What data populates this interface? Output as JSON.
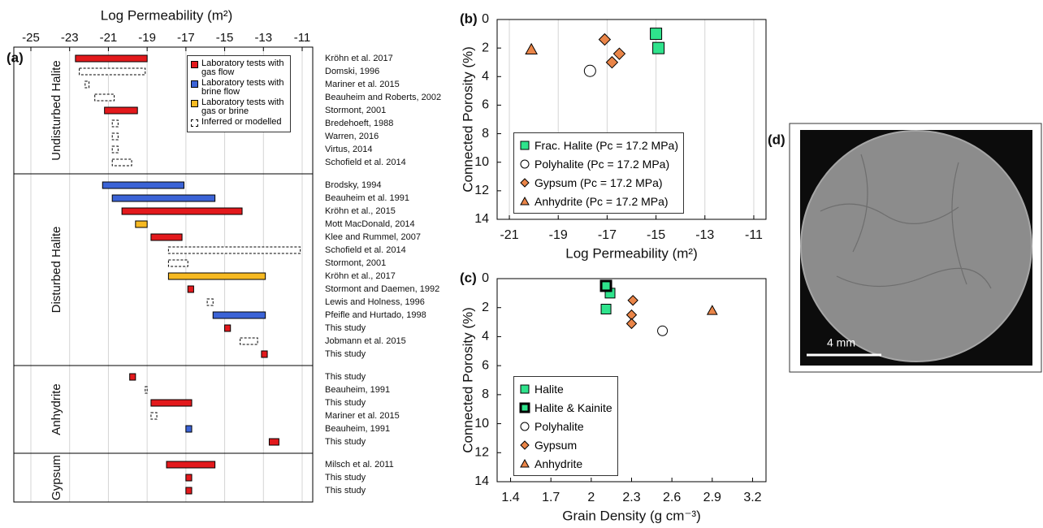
{
  "chart_data": [
    {
      "type": "range_bar",
      "panel_label": "(a)",
      "xlabel": "Log Permeability (m²)",
      "xlim": [
        -25,
        -11
      ],
      "xticks": [
        -25,
        -23,
        -21,
        -19,
        -17,
        -15,
        -13,
        -11
      ],
      "grid": "x",
      "legend": "top-right",
      "series": [
        {
          "name": "Laboratory tests with gas flow",
          "color": "#e3191c",
          "style": "solid"
        },
        {
          "name": "Laboratory tests with brine flow",
          "color": "#3b63d6",
          "style": "solid"
        },
        {
          "name": "Laboratory tests with gas or brine",
          "color": "#f6b921",
          "style": "solid"
        },
        {
          "name": "Inferred or modelled",
          "color": "#ffffff",
          "style": "dashed"
        }
      ],
      "groups": [
        {
          "name": "Undisturbed Halite",
          "bars": [
            {
              "label": "Kröhn et al. 2017",
              "range": [
                -22.7,
                -19.0
              ],
              "series": 0
            },
            {
              "label": "Domski, 1996",
              "range": [
                -22.5,
                -19.1
              ],
              "series": 3
            },
            {
              "label": "Mariner et al. 2015",
              "range": [
                -22.2,
                -22.0
              ],
              "series": 3
            },
            {
              "label": "Beauheim and Roberts, 2002",
              "range": [
                -21.7,
                -20.7
              ],
              "series": 3
            },
            {
              "label": "Stormont, 2001",
              "range": [
                -21.2,
                -19.5
              ],
              "series": 0
            },
            {
              "label": "Bredehoeft, 1988",
              "range": [
                -20.8,
                -20.5
              ],
              "series": 3
            },
            {
              "label": "Warren, 2016",
              "range": [
                -20.8,
                -20.5
              ],
              "series": 3
            },
            {
              "label": "Virtus, 2014",
              "range": [
                -20.8,
                -20.5
              ],
              "series": 3
            },
            {
              "label": "Schofield et al. 2014",
              "range": [
                -20.8,
                -19.8
              ],
              "series": 3
            }
          ]
        },
        {
          "name": "Disturbed Halite",
          "bars": [
            {
              "label": "Brodsky, 1994",
              "range": [
                -21.3,
                -17.1
              ],
              "series": 1
            },
            {
              "label": "Beauheim et al. 1991",
              "range": [
                -20.8,
                -15.5
              ],
              "series": 1
            },
            {
              "label": "Kröhn et al., 2015",
              "range": [
                -20.3,
                -14.1
              ],
              "series": 0
            },
            {
              "label": "Mott MacDonald, 2014",
              "range": [
                -19.6,
                -19.0
              ],
              "series": 2
            },
            {
              "label": "Klee and Rummel, 2007",
              "range": [
                -18.8,
                -17.2
              ],
              "series": 0
            },
            {
              "label": "Schofield et al. 2014",
              "range": [
                -17.9,
                -11.1
              ],
              "series": 3
            },
            {
              "label": "Stormont, 2001",
              "range": [
                -17.9,
                -16.9
              ],
              "series": 3
            },
            {
              "label": "Kröhn et al., 2017",
              "range": [
                -17.9,
                -12.9
              ],
              "series": 2
            },
            {
              "label": "Stormont and Daemen, 1992",
              "range": [
                -16.9,
                -16.6
              ],
              "series": 0
            },
            {
              "label": "Lewis and Holness, 1996",
              "range": [
                -15.9,
                -15.6
              ],
              "series": 3
            },
            {
              "label": "Pfeifle and Hurtado, 1998",
              "range": [
                -15.6,
                -12.9
              ],
              "series": 1
            },
            {
              "label": "This study",
              "range": [
                -15.0,
                -14.7
              ],
              "series": 0
            },
            {
              "label": "Jobmann et al. 2015",
              "range": [
                -14.2,
                -13.3
              ],
              "series": 3
            },
            {
              "label": "This study",
              "range": [
                -13.1,
                -12.8
              ],
              "series": 0
            }
          ]
        },
        {
          "name": "Anhydrite",
          "bars": [
            {
              "label": "This study",
              "range": [
                -19.9,
                -19.6
              ],
              "series": 0
            },
            {
              "label": "Beauheim, 1991",
              "range": [
                -19.1,
                -19.0
              ],
              "series": 3
            },
            {
              "label": "This study",
              "range": [
                -18.8,
                -16.7
              ],
              "series": 0
            },
            {
              "label": "Mariner et al. 2015",
              "range": [
                -18.8,
                -18.5
              ],
              "series": 3
            },
            {
              "label": "Beauheim, 1991",
              "range": [
                -17.0,
                -16.7
              ],
              "series": 1
            },
            {
              "label": "This study",
              "range": [
                -12.7,
                -12.2
              ],
              "series": 0
            }
          ]
        },
        {
          "name": "Gypsum",
          "bars": [
            {
              "label": "Milsch et al. 2011",
              "range": [
                -18.0,
                -15.5
              ],
              "series": 0
            },
            {
              "label": "This study",
              "range": [
                -17.0,
                -16.7
              ],
              "series": 0
            },
            {
              "label": "This study",
              "range": [
                -17.0,
                -16.7
              ],
              "series": 0
            }
          ]
        }
      ]
    },
    {
      "type": "scatter",
      "panel_label": "(b)",
      "xlabel": "Log Permeability (m²)",
      "ylabel": "Connected Porosity (%)",
      "xlim": [
        -21.5,
        -10.5
      ],
      "xticks": [
        -21,
        -19,
        -17,
        -15,
        -13,
        -11
      ],
      "ylim": [
        0,
        14
      ],
      "yticks": [
        0,
        2,
        4,
        6,
        8,
        10,
        12,
        14
      ],
      "y_inverted": true,
      "grid": "x",
      "legend": "bottom-left",
      "series": [
        {
          "name": "Frac. Halite (Pc = 17.2 MPa)",
          "color": "#2fe38c",
          "marker": "square",
          "x": [
            -15.0,
            -14.9
          ],
          "values": [
            1.0,
            2.0
          ]
        },
        {
          "name": "Polyhalite (Pc = 17.2 MPa)",
          "color": "#ffffff",
          "marker": "circle",
          "x": [
            -17.7
          ],
          "values": [
            3.6
          ]
        },
        {
          "name": "Gypsum (Pc = 17.2 MPa)",
          "color": "#ea8548",
          "marker": "diamond",
          "x": [
            -17.1,
            -16.5,
            -16.8
          ],
          "values": [
            1.4,
            2.4,
            3.0
          ]
        },
        {
          "name": "Anhydrite (Pc = 17.2 MPa)",
          "color": "#ea8548",
          "marker": "triangle",
          "x": [
            -20.1
          ],
          "values": [
            2.1
          ]
        }
      ]
    },
    {
      "type": "scatter",
      "panel_label": "(c)",
      "xlabel": "Grain Density (g cm⁻³)",
      "ylabel": "Connected Porosity (%)",
      "xlim": [
        1.3,
        3.3
      ],
      "xticks": [
        1.4,
        1.7,
        2,
        2.3,
        2.6,
        2.9,
        3.2
      ],
      "ylim": [
        0,
        14
      ],
      "yticks": [
        0,
        2,
        4,
        6,
        8,
        10,
        12,
        14
      ],
      "y_inverted": true,
      "grid": "none",
      "legend": "bottom-left",
      "series": [
        {
          "name": "Halite",
          "color": "#2fe38c",
          "marker": "square",
          "x": [
            2.14,
            2.11
          ],
          "values": [
            1.0,
            2.1
          ]
        },
        {
          "name": "Halite & Kainite",
          "color": "#2fe38c",
          "marker": "square-bold",
          "x": [
            2.11
          ],
          "values": [
            0.5
          ]
        },
        {
          "name": "Polyhalite",
          "color": "#ffffff",
          "marker": "circle",
          "x": [
            2.53
          ],
          "values": [
            3.6
          ]
        },
        {
          "name": "Gypsum",
          "color": "#ea8548",
          "marker": "diamond",
          "x": [
            2.31,
            2.3,
            2.3
          ],
          "values": [
            1.5,
            2.5,
            3.1
          ]
        },
        {
          "name": "Anhydrite",
          "color": "#ea8548",
          "marker": "triangle",
          "x": [
            2.9
          ],
          "values": [
            2.2
          ]
        }
      ]
    }
  ],
  "image_panel": {
    "panel_label": "(d)",
    "scale_bar": "4 mm"
  }
}
